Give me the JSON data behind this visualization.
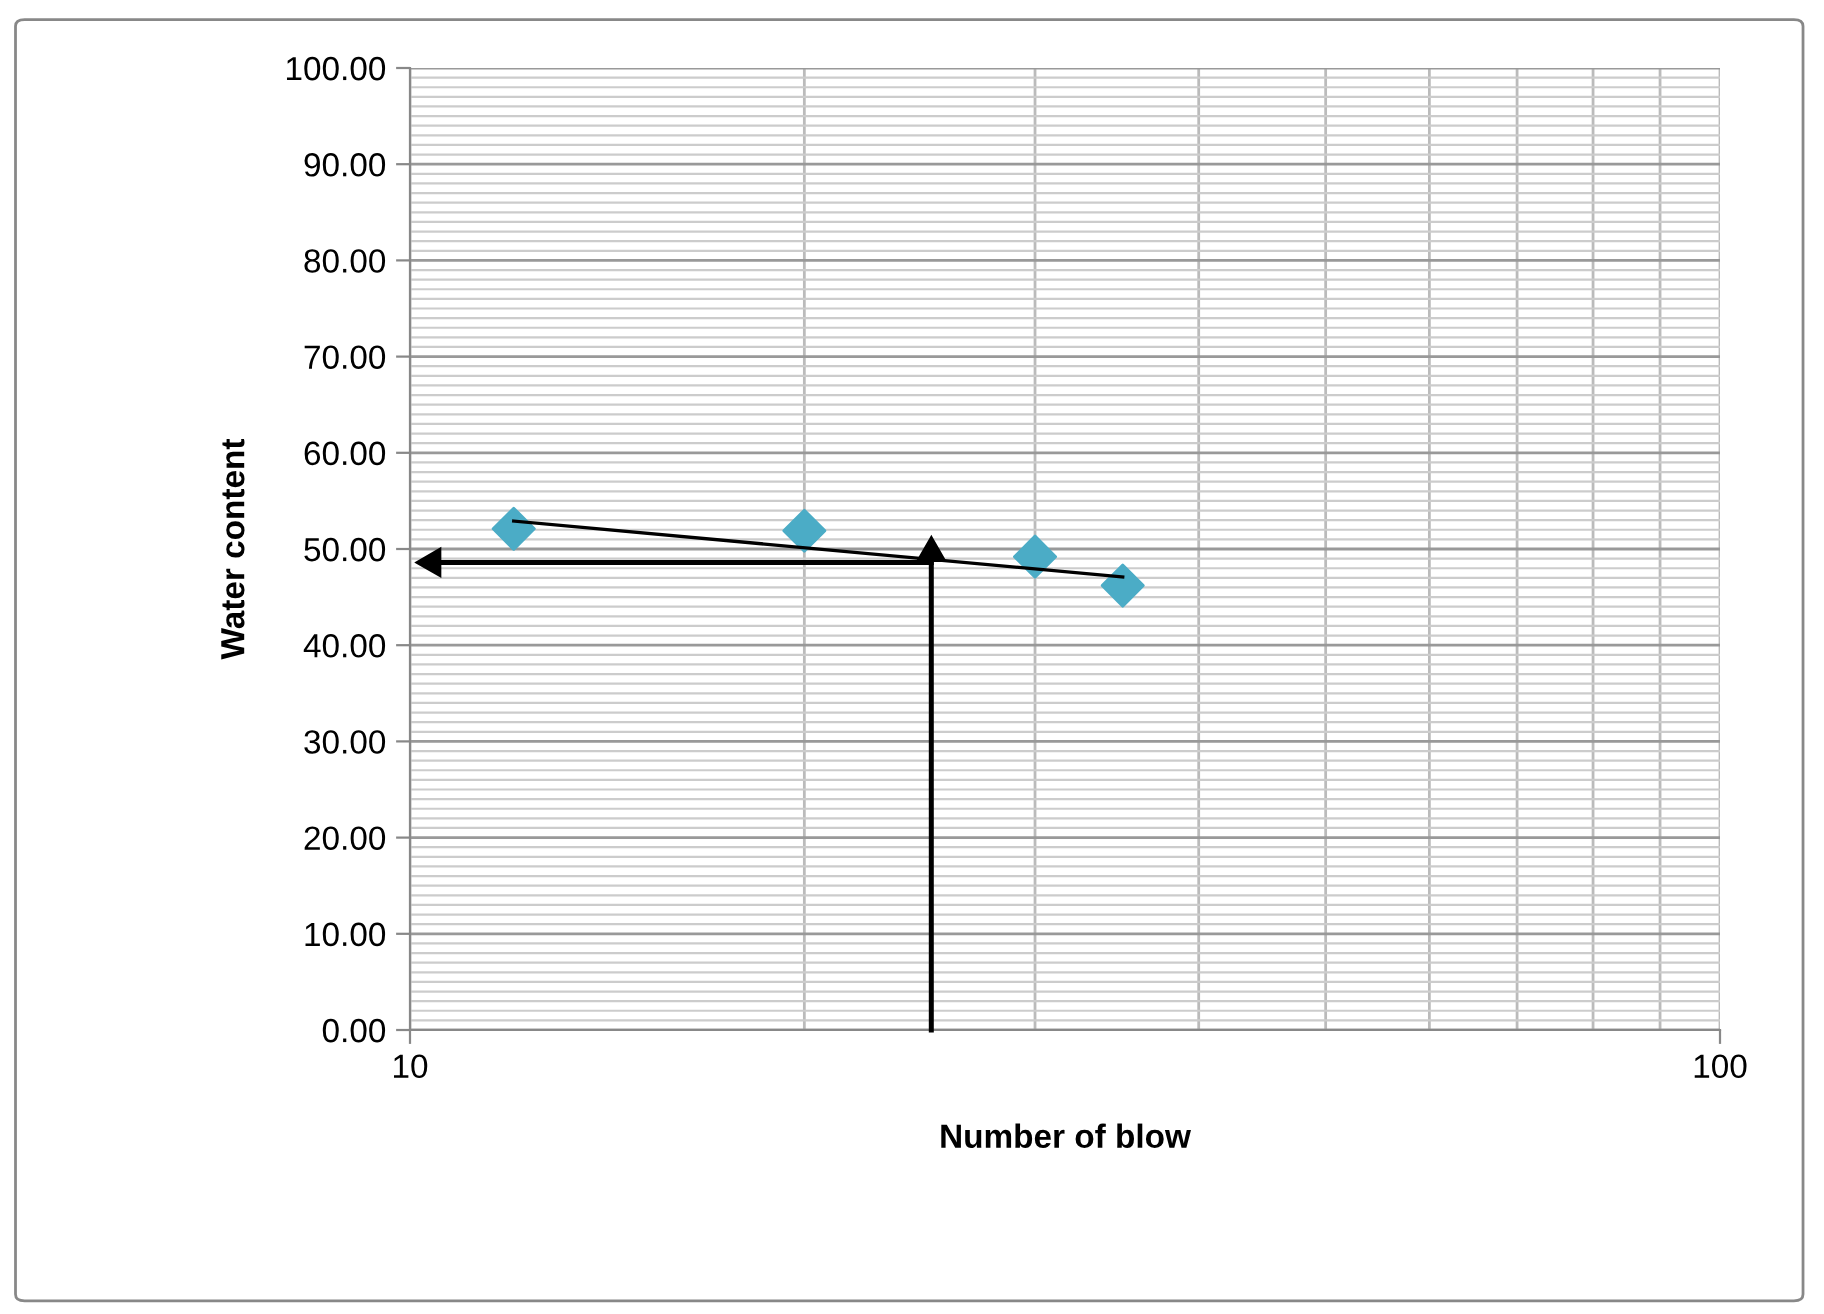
{
  "chart_data": {
    "type": "scatter",
    "xlabel": "Number of blow",
    "ylabel": "Water content",
    "log": "x",
    "grid": true,
    "xlim": [
      10,
      100
    ],
    "xticks": [
      10,
      100
    ],
    "ylim": [
      0,
      100
    ],
    "yticks": [
      {
        "value": 0,
        "label": "0.00"
      },
      {
        "value": 10,
        "label": "10.00"
      },
      {
        "value": 20,
        "label": "20.00"
      },
      {
        "value": 30,
        "label": "30.00"
      },
      {
        "value": 40,
        "label": "40.00"
      },
      {
        "value": 50,
        "label": "50.00"
      },
      {
        "value": 60,
        "label": "60.00"
      },
      {
        "value": 70,
        "label": "70.00"
      },
      {
        "value": 80,
        "label": "80.00"
      },
      {
        "value": 90,
        "label": "90.00"
      },
      {
        "value": 100,
        "label": "100.00"
      }
    ],
    "series": [
      {
        "marker": "diamond",
        "color": "#4bacc6",
        "x": [
          12,
          20,
          30,
          35
        ],
        "values": [
          52.1,
          51.9,
          49.2,
          46.2
        ]
      },
      {
        "type": "line",
        "color": "#000000",
        "x": [
          12,
          35
        ],
        "values": [
          52.9,
          47.1
        ]
      },
      {
        "type": "line",
        "marker": "triangle",
        "color": "#000000",
        "x": [
          25,
          25
        ],
        "values": [
          0,
          49.6
        ]
      },
      {
        "type": "line",
        "marker": "triangle",
        "color": "#000000",
        "x": [
          25,
          10.4
        ],
        "values": [
          48.6,
          48.6
        ]
      }
    ]
  }
}
